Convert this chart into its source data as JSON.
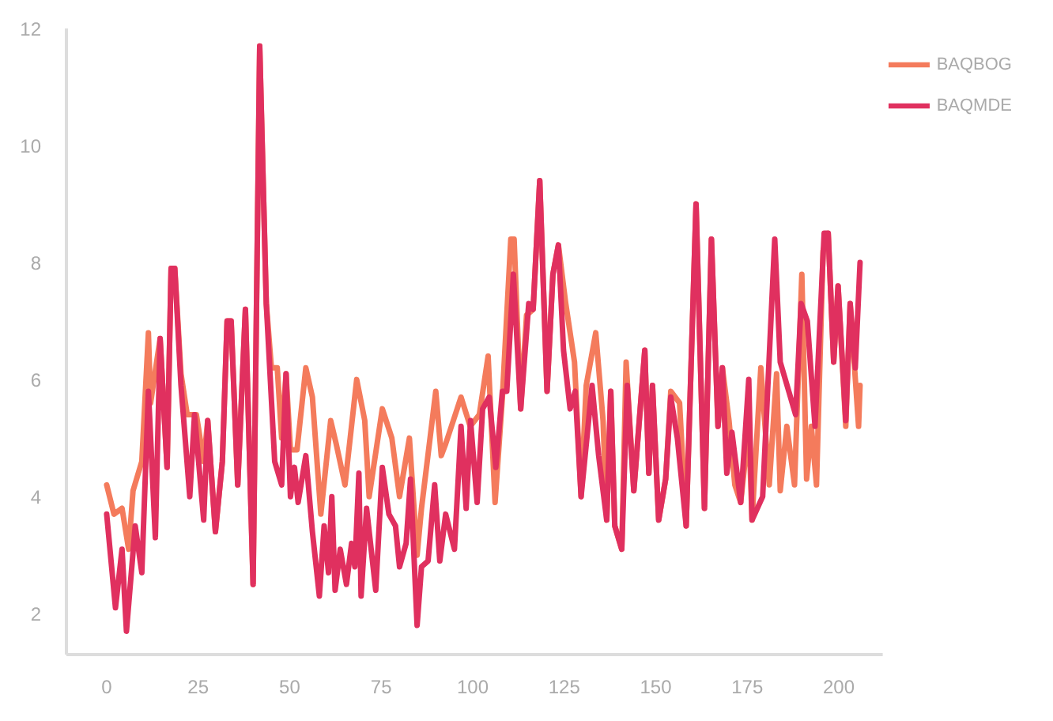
{
  "chart_data": {
    "type": "line",
    "xlim": [
      -11,
      212
    ],
    "xticks": [
      0,
      25,
      50,
      75,
      100,
      125,
      150,
      175,
      200
    ],
    "ylim": [
      1.3,
      12
    ],
    "yticks": [
      2,
      4,
      6,
      8,
      10,
      12
    ],
    "grid": false,
    "legend": "top right",
    "marker": "none",
    "line_style": "solid",
    "series": [
      {
        "name": "BAQBOG",
        "color": "#f47b5c",
        "x": [
          0,
          2,
          4.2,
          6,
          7.2,
          9.6,
          11.4,
          12,
          14.6,
          16.5,
          17.6,
          18.6,
          20.3,
          22,
          24.5,
          26.5,
          27.6,
          29.7,
          31.6,
          32.9,
          34,
          35.8,
          37.9,
          40,
          41.8,
          43.6,
          45,
          46.6,
          47.8,
          49,
          50.2,
          52,
          54.4,
          56.2,
          58.5,
          61.2,
          62.7,
          65.1,
          68.3,
          70.5,
          71.7,
          75.3,
          77.9,
          80,
          82.7,
          84.8,
          86,
          89.9,
          91.4,
          92.6,
          96.8,
          99.3,
          101.8,
          104.2,
          106.1,
          108.1,
          110.4,
          111.3,
          113.1,
          114.7,
          116.5,
          118.3,
          120.3,
          121.9,
          123.4,
          125.4,
          127.8,
          129.6,
          131,
          133.6,
          135.6,
          136.6,
          137.7,
          138.8,
          140.7,
          141.9,
          144,
          147,
          148.1,
          149.1,
          150.8,
          152.7,
          154.1,
          156.5,
          158.3,
          161,
          163.3,
          165.2,
          167,
          168.2,
          170,
          171.6,
          173.2,
          175.4,
          176.3,
          178.7,
          181,
          183,
          184,
          185.8,
          187.9,
          189.9,
          191.2,
          192.5,
          193.9,
          195.7,
          197.1,
          198.6,
          199.8,
          201.9,
          203.1,
          205.4,
          205.8
        ],
        "values": [
          4.2,
          3.7,
          3.8,
          3.1,
          4.1,
          4.6,
          6.8,
          5.6,
          6.7,
          4.5,
          7.9,
          7.9,
          6.1,
          5.4,
          5.4,
          4.6,
          5.3,
          3.4,
          4.6,
          7,
          7,
          4.2,
          7.2,
          2.5,
          11.7,
          7.3,
          6.2,
          6.2,
          5,
          6.1,
          4.8,
          4.8,
          6.2,
          5.7,
          3.7,
          5.3,
          4.9,
          4.2,
          6,
          5.3,
          4,
          5.5,
          5,
          4,
          5,
          3,
          3.8,
          5.8,
          4.7,
          4.9,
          5.7,
          5.2,
          5.4,
          6.4,
          3.9,
          5.7,
          8.4,
          8.4,
          5.5,
          7.1,
          7.2,
          9.4,
          5.8,
          7.8,
          8.3,
          7.3,
          6.3,
          4,
          5.9,
          6.8,
          5.3,
          3.6,
          5.8,
          3.5,
          3.1,
          6.3,
          4.1,
          6.5,
          4.4,
          5.9,
          3.6,
          4.3,
          5.8,
          5.6,
          3.5,
          9,
          3.8,
          8.4,
          5.2,
          6.2,
          5.3,
          4.2,
          3.9,
          5.2,
          3.6,
          6.2,
          4.2,
          6.1,
          4.1,
          5.2,
          4.2,
          7.8,
          4.3,
          5.2,
          4.2,
          8.2,
          8.5,
          6.3,
          7.6,
          5.2,
          7.3,
          5.2,
          5.9
        ]
      },
      {
        "name": "BAQMDE",
        "color": "#e0305f",
        "x": [
          0,
          2.4,
          4.2,
          5.4,
          7.8,
          9.6,
          11.4,
          13.3,
          14.6,
          16.5,
          17.6,
          18.6,
          20.3,
          22.7,
          24,
          26.5,
          27.6,
          29.7,
          31.6,
          32.9,
          34,
          35.8,
          37.9,
          40,
          41.8,
          43.6,
          45.9,
          47.8,
          49,
          50.2,
          51.3,
          52.3,
          54.4,
          56.2,
          58.1,
          59.4,
          60.6,
          61.5,
          62.4,
          63.8,
          65.5,
          66.9,
          67.8,
          68.9,
          69.5,
          71,
          73.5,
          75.3,
          77.1,
          78.9,
          80,
          81.8,
          83,
          84.8,
          86,
          87.8,
          89.6,
          91,
          92.6,
          95,
          96.8,
          98.2,
          99.4,
          101.2,
          102.7,
          104.5,
          106.3,
          108.1,
          109.3,
          111.1,
          113.1,
          115.3,
          116.5,
          118.3,
          120.3,
          121.9,
          123.4,
          124.8,
          126.6,
          128,
          129.6,
          132.6,
          134.4,
          136.6,
          137.7,
          138.8,
          140.7,
          142.2,
          144,
          147,
          148.1,
          149.1,
          150.8,
          152.7,
          154.1,
          155.9,
          158.3,
          161,
          163.3,
          165.2,
          167,
          168.2,
          169.4,
          170.8,
          173.2,
          175.4,
          176.3,
          179.2,
          182.5,
          184,
          188.2,
          189.7,
          191.4,
          193.5,
          196,
          197.1,
          198.6,
          199.8,
          201.9,
          203.1,
          204.5,
          205.8
        ],
        "values": [
          3.7,
          2.1,
          3.1,
          1.7,
          3.5,
          2.7,
          5.8,
          3.3,
          6.7,
          4.5,
          7.9,
          7.9,
          5.9,
          4,
          5.4,
          3.6,
          5.3,
          3.4,
          4.6,
          7,
          7,
          4.2,
          7.2,
          2.5,
          11.7,
          7.3,
          4.6,
          4.2,
          6.1,
          4,
          4.5,
          3.9,
          4.7,
          3.4,
          2.3,
          3.5,
          2.7,
          4,
          2.4,
          3.1,
          2.5,
          3.2,
          2.8,
          4.4,
          2.3,
          3.8,
          2.4,
          4.5,
          3.7,
          3.5,
          2.8,
          3.2,
          4.3,
          1.8,
          2.8,
          2.9,
          4.2,
          2.9,
          3.7,
          3.1,
          5.2,
          3.8,
          5.3,
          3.9,
          5.5,
          5.7,
          4.5,
          5.8,
          5.8,
          7.8,
          5.5,
          7.3,
          7.2,
          9.4,
          5.8,
          7.8,
          8.3,
          6.5,
          5.5,
          5.8,
          4,
          5.9,
          4.7,
          3.6,
          5.8,
          3.5,
          3.1,
          5.9,
          4.1,
          6.5,
          4.4,
          5.9,
          3.6,
          4.3,
          5.7,
          5,
          3.5,
          9,
          3.8,
          8.4,
          5.2,
          6.2,
          4.4,
          5.1,
          3.9,
          6,
          3.6,
          4,
          8.4,
          6.3,
          5.4,
          7.3,
          7,
          5.2,
          8.5,
          8.5,
          6.3,
          7.6,
          5.3,
          7.3,
          6.2,
          8
        ]
      }
    ]
  }
}
